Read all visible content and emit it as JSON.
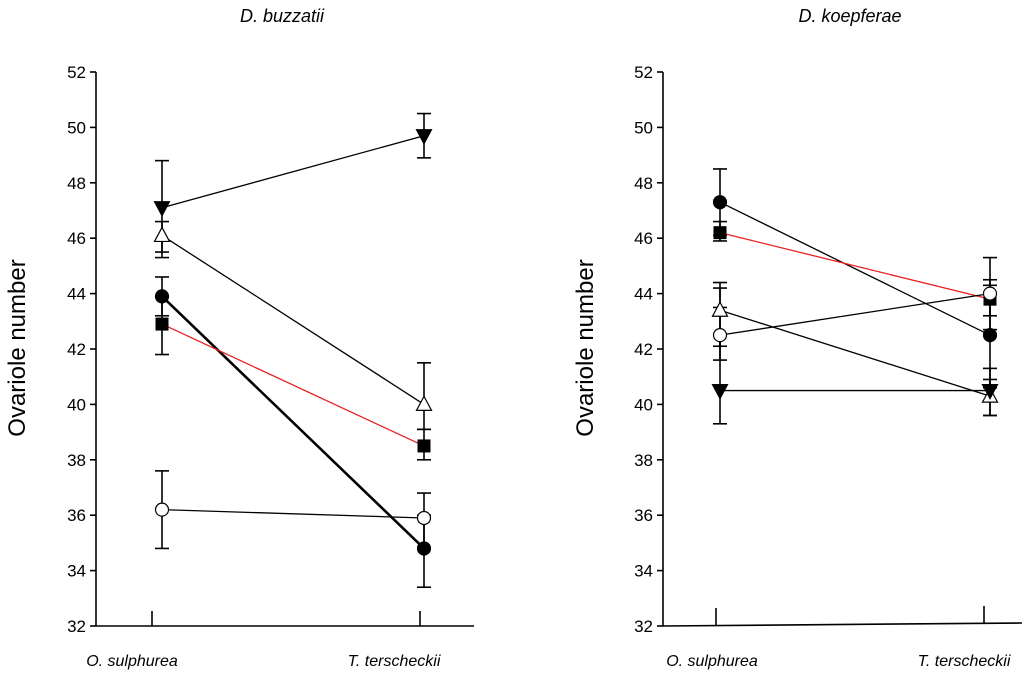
{
  "chart_data": [
    {
      "type": "line",
      "title": "D. buzzatii",
      "xlabel": "",
      "ylabel": "Ovariole number",
      "ylim": [
        32,
        52
      ],
      "yticks": [
        32,
        34,
        36,
        38,
        40,
        42,
        44,
        46,
        48,
        50,
        52
      ],
      "categories": [
        "O. sulphurea",
        "T. terscheckii"
      ],
      "series": [
        {
          "marker": "filled-down-triangle",
          "line_color": "#000000",
          "line_width": 1.3,
          "values": [
            47.1,
            49.7
          ],
          "err_low": [
            45.5,
            48.9
          ],
          "err_high": [
            48.8,
            50.5
          ]
        },
        {
          "marker": "open-triangle",
          "line_color": "#000000",
          "line_width": 1.3,
          "values": [
            46.1,
            40.0
          ],
          "err_low": [
            45.3,
            39.1
          ],
          "err_high": [
            46.6,
            41.5
          ]
        },
        {
          "marker": "filled-circle",
          "line_color": "#000000",
          "line_width": 2.6,
          "values": [
            43.9,
            34.8
          ],
          "err_low": [
            43.2,
            33.4
          ],
          "err_high": [
            44.6,
            36.0
          ]
        },
        {
          "marker": "filled-square",
          "line_color": "#e8201f",
          "line_width": 1.3,
          "values": [
            42.9,
            38.5
          ],
          "err_low": [
            41.8,
            38.0
          ],
          "err_high": [
            43.9,
            39.1
          ]
        },
        {
          "marker": "open-circle",
          "line_color": "#000000",
          "line_width": 1.3,
          "values": [
            36.2,
            35.9
          ],
          "err_low": [
            34.8,
            34.8
          ],
          "err_high": [
            37.6,
            36.8
          ]
        }
      ]
    },
    {
      "type": "line",
      "title": "D. koepferae",
      "xlabel": "",
      "ylabel": "Ovariole number",
      "ylim": [
        32,
        52
      ],
      "yticks": [
        32,
        34,
        36,
        38,
        40,
        42,
        44,
        46,
        48,
        50,
        52
      ],
      "categories": [
        "O. sulphurea",
        "T. terscheckii"
      ],
      "series": [
        {
          "marker": "filled-circle",
          "line_color": "#000000",
          "line_width": 1.3,
          "values": [
            47.3,
            42.5
          ],
          "err_low": [
            46.1,
            40.6
          ],
          "err_high": [
            48.5,
            44.3
          ]
        },
        {
          "marker": "filled-square",
          "line_color": "#e8201f",
          "line_width": 1.3,
          "values": [
            46.2,
            43.8
          ],
          "err_low": [
            45.9,
            43.2
          ],
          "err_high": [
            46.6,
            44.5
          ]
        },
        {
          "marker": "open-triangle",
          "line_color": "#000000",
          "line_width": 1.3,
          "values": [
            43.4,
            40.3
          ],
          "err_low": [
            42.1,
            39.6
          ],
          "err_high": [
            44.4,
            40.9
          ]
        },
        {
          "marker": "open-circle",
          "line_color": "#000000",
          "line_width": 1.3,
          "values": [
            42.5,
            44.0
          ],
          "err_low": [
            41.6,
            42.7
          ],
          "err_high": [
            43.5,
            45.3
          ]
        },
        {
          "marker": "filled-down-triangle",
          "line_color": "#000000",
          "line_width": 1.3,
          "values": [
            40.5,
            40.5
          ],
          "err_low": [
            39.3,
            39.6
          ],
          "err_high": [
            44.2,
            41.3
          ]
        }
      ]
    }
  ]
}
